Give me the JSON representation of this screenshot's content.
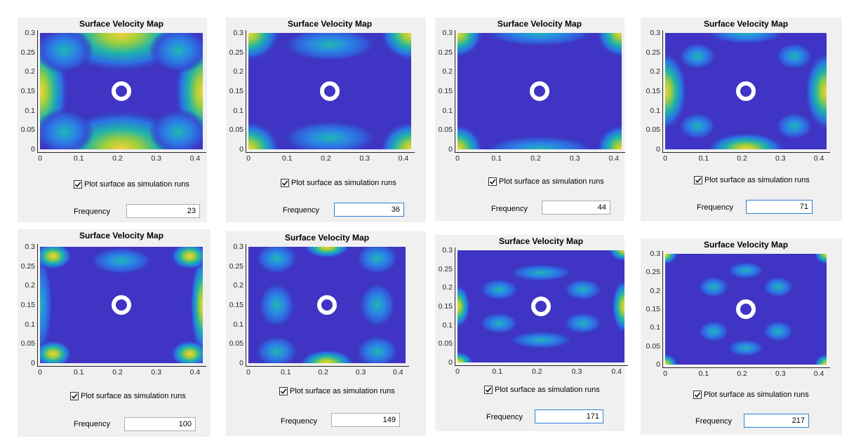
{
  "panels": [
    {
      "title": "Surface Velocity Map",
      "checkbox_label": "Plot surface as simulation runs",
      "checked": true,
      "frequency_label": "Frequency",
      "frequency_value": "23"
    },
    {
      "title": "Surface Velocity Map",
      "checkbox_label": "Plot surface as simulation runs",
      "checked": true,
      "frequency_label": "Frequency",
      "frequency_value": "36"
    },
    {
      "title": "Surface Velocity Map",
      "checkbox_label": "Plot surface as simulation runs",
      "checked": true,
      "frequency_label": "Frequency",
      "frequency_value": "44"
    },
    {
      "title": "Surface Velocity Map",
      "checkbox_label": "Plot surface as simulation runs",
      "checked": true,
      "frequency_label": "Frequency",
      "frequency_value": "71"
    },
    {
      "title": "Surface Velocity Map",
      "checkbox_label": "Plot surface as simulation runs",
      "checked": true,
      "frequency_label": "Frequency",
      "frequency_value": "100"
    },
    {
      "title": "Surface Velocity Map",
      "checkbox_label": "Plot surface as simulation runs",
      "checked": true,
      "frequency_label": "Frequency",
      "frequency_value": "149"
    },
    {
      "title": "Surface Velocity Map",
      "checkbox_label": "Plot surface as simulation runs",
      "checked": true,
      "frequency_label": "Frequency",
      "frequency_value": "171"
    },
    {
      "title": "Surface Velocity Map",
      "checkbox_label": "Plot surface as simulation runs",
      "checked": true,
      "frequency_label": "Frequency",
      "frequency_value": "217"
    }
  ],
  "axes": {
    "x_ticks": [
      "0",
      "0.1",
      "0.2",
      "0.3",
      "0.4"
    ],
    "y_ticks": [
      "0",
      "0.05",
      "0.1",
      "0.15",
      "0.2",
      "0.25",
      "0.3"
    ],
    "xlim": [
      0,
      0.42
    ],
    "ylim": [
      0,
      0.3
    ]
  },
  "colors": {
    "colormap": "parula",
    "background": "#f0f0f0",
    "low": "#3a2fb0",
    "high": "#f2c83a"
  }
}
